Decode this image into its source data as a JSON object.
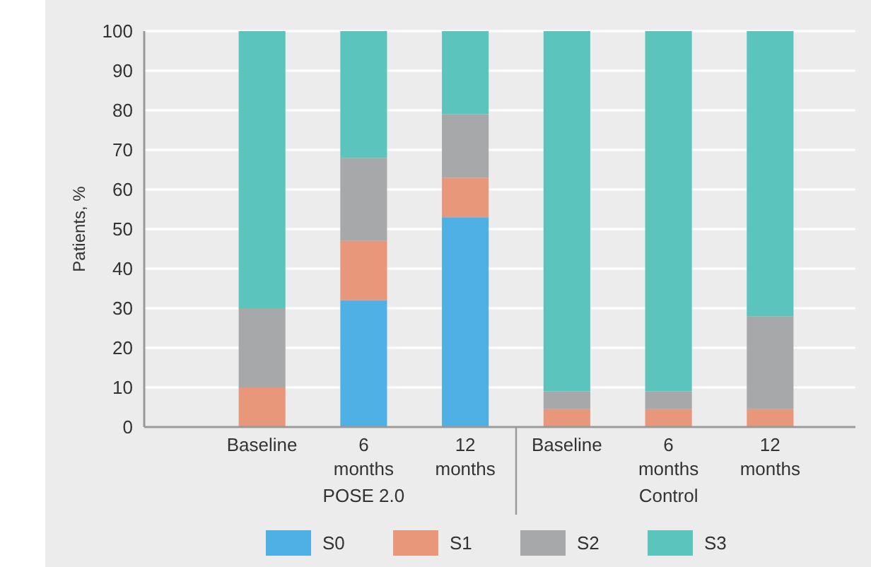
{
  "chart_data": {
    "type": "bar",
    "stacked": true,
    "ylabel": "Patients, %",
    "categories": [
      "Baseline",
      "6 months",
      "12 months",
      "Baseline",
      "6 months",
      "12 months"
    ],
    "series": [
      {
        "name": "S0",
        "color": "#4fb0e5",
        "values": [
          0,
          32,
          53,
          0,
          0,
          0
        ]
      },
      {
        "name": "S1",
        "color": "#e8977a",
        "values": [
          10,
          15,
          10,
          4.5,
          4.5,
          4.5
        ]
      },
      {
        "name": "S2",
        "color": "#a7a8aa",
        "values": [
          20,
          21,
          16,
          4.5,
          4.5,
          23.5
        ]
      },
      {
        "name": "S3",
        "color": "#5bc4bd",
        "values": [
          70,
          32,
          21,
          91,
          91,
          72
        ]
      }
    ],
    "ylim": [
      0,
      100
    ],
    "yticks": [
      0,
      10,
      20,
      30,
      40,
      50,
      60,
      70,
      80,
      90,
      100
    ],
    "grid": "y",
    "legend": "bottom",
    "annotations": [
      "POSE 2.0",
      "Control"
    ]
  }
}
